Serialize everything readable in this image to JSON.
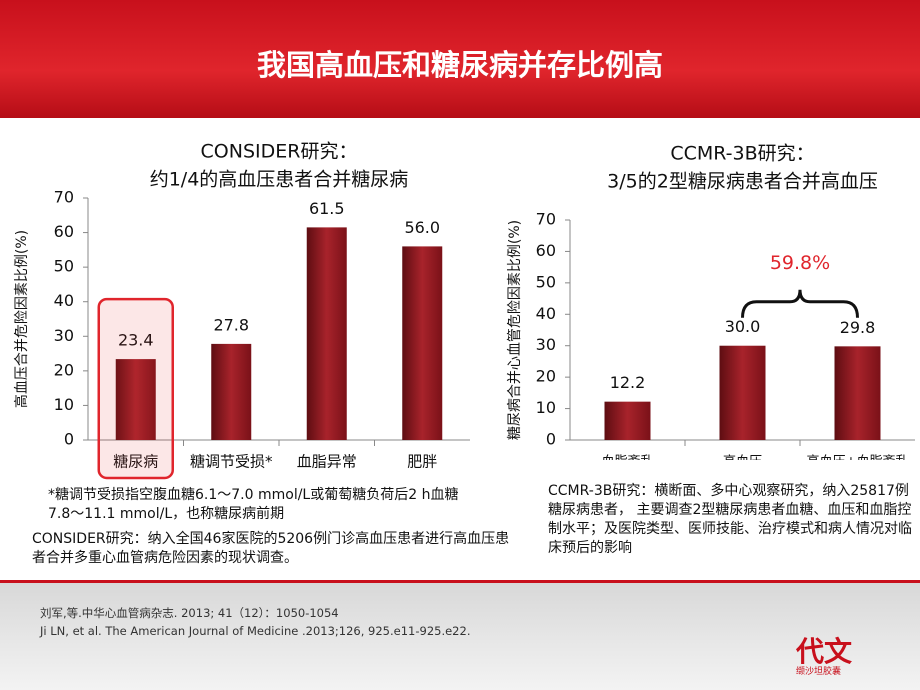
{
  "slide": {
    "title": "我国高血压和糖尿病并存比例高",
    "references": [
      "刘军,等.中华心血管病杂志. 2013; 41（12）：1050-1054",
      "Ji LN, et al. The American Journal of Medicine .2013;126, 925.e11-925.e22."
    ],
    "logo": {
      "brand": "代文",
      "product": "缬沙坦胶囊"
    }
  },
  "chart_data": [
    {
      "type": "bar",
      "title": [
        "CONSIDER研究：",
        "约1/4的高血压患者合并糖尿病"
      ],
      "y_label": "高血压合并危险因素比例(%)",
      "categories": [
        "糖尿病",
        "糖调节受损*",
        "血脂异常",
        "肥胖"
      ],
      "values": [
        23.4,
        27.8,
        61.5,
        56.0
      ],
      "value_labels": [
        "23.4",
        "27.8",
        "61.5",
        "56.0"
      ],
      "color": "#a8232b",
      "ylim": [
        0,
        70
      ],
      "yticks": [
        0,
        10,
        20,
        30,
        40,
        50,
        60,
        70
      ],
      "notes": [
        "*糖调节受损指空腹血糖6.1～7.0 mmol/L或葡萄糖负荷后2 h血糖7.8～11.1 mmol/L，也称糖尿病前期",
        "CONSIDER研究：纳入全国46家医院的5206例门诊高血压患者进行高血压患者合并多重心血管病危险因素的现状调查。"
      ]
    },
    {
      "type": "bar",
      "title": [
        "CCMR-3B研究：",
        "3/5的2型糖尿病患者合并高血压"
      ],
      "y_label": "糖尿病合并心血管危险因素比例(%)",
      "categories": [
        "血脂紊乱",
        "高血压",
        "高血压+血脂紊乱"
      ],
      "values": [
        12.2,
        30.0,
        29.8
      ],
      "value_labels": [
        "12.2",
        "30.0",
        "29.8"
      ],
      "color": "#a8232b",
      "ylim": [
        0,
        70
      ],
      "yticks": [
        0,
        10,
        20,
        30,
        40,
        50,
        60,
        70
      ],
      "annotation": "59.8%",
      "notes": [
        "CCMR-3B研究：横断面、多中心观察研究，纳入25817例糖尿病患者， 主要调查2型糖尿病患者血糖、血压和血脂控制水平；及医院类型、医师技能、治疗模式和病人情况对临床预后的影响"
      ]
    }
  ]
}
